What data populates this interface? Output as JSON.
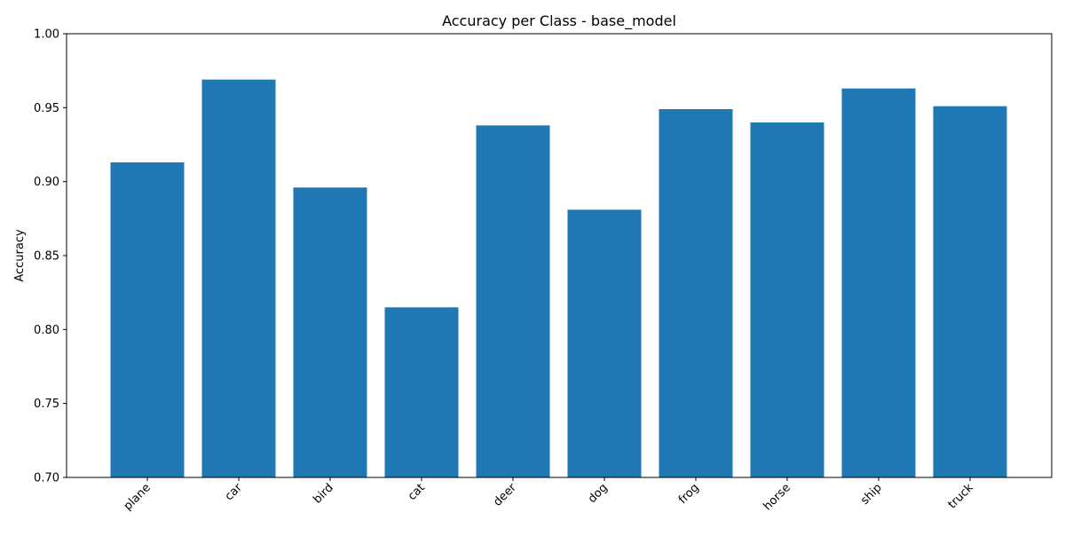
{
  "chart_data": {
    "type": "bar",
    "title": "Accuracy per Class - base_model",
    "xlabel": "",
    "ylabel": "Accuracy",
    "categories": [
      "plane",
      "car",
      "bird",
      "cat",
      "deer",
      "dog",
      "frog",
      "horse",
      "ship",
      "truck"
    ],
    "values": [
      0.913,
      0.969,
      0.896,
      0.815,
      0.938,
      0.881,
      0.949,
      0.94,
      0.963,
      0.951
    ],
    "ylim": [
      0.7,
      1.0
    ],
    "yticks": [
      "0.70",
      "0.75",
      "0.80",
      "0.85",
      "0.90",
      "0.95",
      "1.00"
    ],
    "grid": false,
    "legend": "none",
    "bar_color": "#1f77b4"
  }
}
